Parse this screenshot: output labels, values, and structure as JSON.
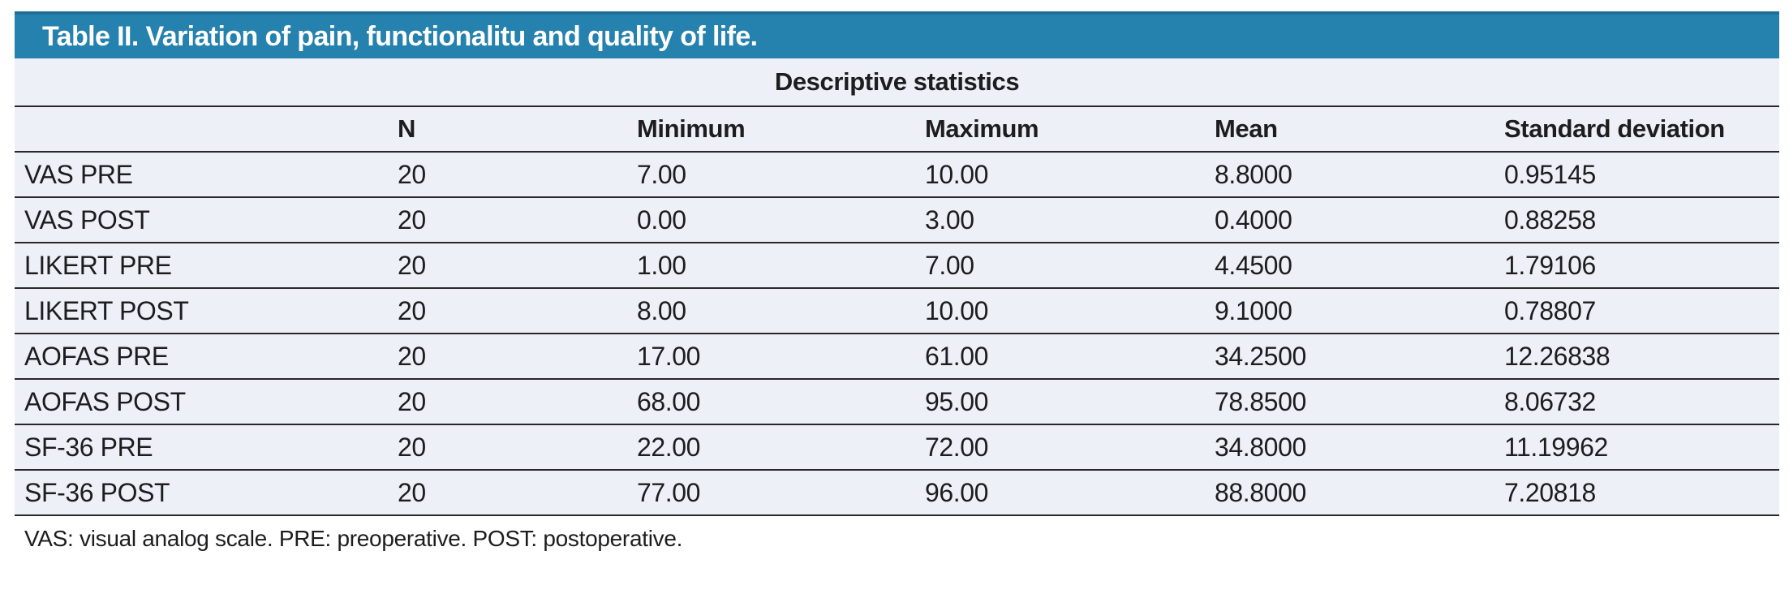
{
  "title": "Table II. Variation of pain, functionalitu and quality of life.",
  "table": {
    "group_header": "Descriptive statistics",
    "columns": [
      "",
      "N",
      "Minimum",
      "Maximum",
      "Mean",
      "Standard deviation"
    ],
    "rows": [
      {
        "label": "VAS PRE",
        "n": "20",
        "min": "7.00",
        "max": "10.00",
        "mean": "8.8000",
        "sd": "0.95145"
      },
      {
        "label": "VAS POST",
        "n": "20",
        "min": "0.00",
        "max": "3.00",
        "mean": "0.4000",
        "sd": "0.88258"
      },
      {
        "label": "LIKERT PRE",
        "n": "20",
        "min": "1.00",
        "max": "7.00",
        "mean": "4.4500",
        "sd": "1.79106"
      },
      {
        "label": "LIKERT POST",
        "n": "20",
        "min": "8.00",
        "max": "10.00",
        "mean": "9.1000",
        "sd": "0.78807"
      },
      {
        "label": "AOFAS PRE",
        "n": "20",
        "min": "17.00",
        "max": "61.00",
        "mean": "34.2500",
        "sd": "12.26838"
      },
      {
        "label": "AOFAS POST",
        "n": "20",
        "min": "68.00",
        "max": "95.00",
        "mean": "78.8500",
        "sd": "8.06732"
      },
      {
        "label": "SF-36 PRE",
        "n": "20",
        "min": "22.00",
        "max": "72.00",
        "mean": "34.8000",
        "sd": "11.19962"
      },
      {
        "label": "SF-36 POST",
        "n": "20",
        "min": "77.00",
        "max": "96.00",
        "mean": "88.8000",
        "sd": "7.20818"
      }
    ]
  },
  "footnote": "VAS: visual analog scale. PRE: preoperative. POST: postoperative.",
  "colors": {
    "header_bar": "#2581ad",
    "header_bar_top_edge": "#1e6e97",
    "row_background": "#edf1f7",
    "rule_line": "#282828",
    "title_text": "#ffffff",
    "body_text": "#1d1d1f"
  }
}
